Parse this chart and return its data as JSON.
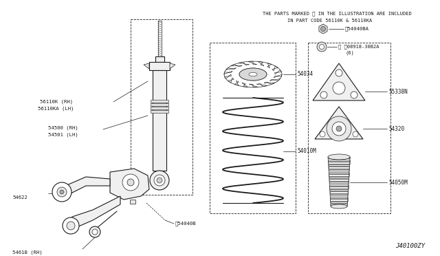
{
  "background_color": "#ffffff",
  "text_color": "#1a1a1a",
  "header_text_line1": "THE PARTS MARKED ※ IN THE ILLUSTRATION ARE INCLUDED",
  "header_text_line2": "IN PART CODE 56110K & 56110KA",
  "diagram_id": "J40100ZY",
  "fig_w": 6.4,
  "fig_h": 3.72,
  "dpi": 100
}
